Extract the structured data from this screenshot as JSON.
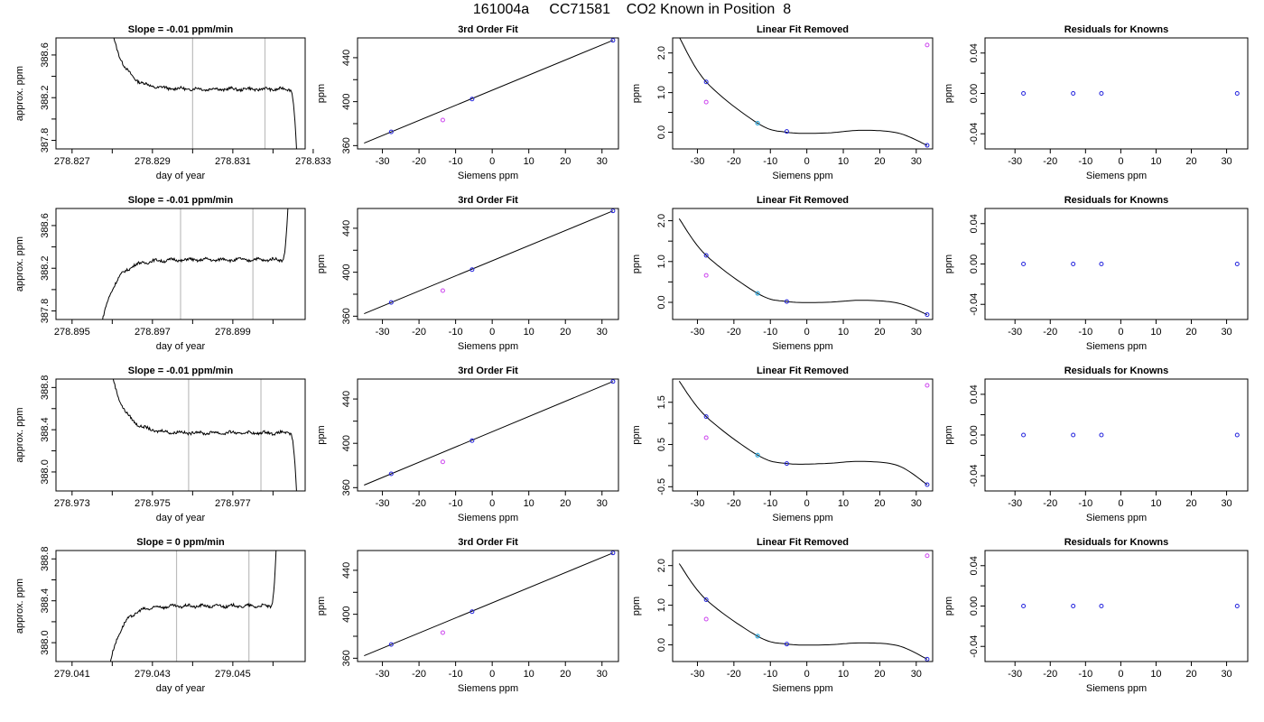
{
  "title": "161004a     CC71581    CO2 Known in Position  8",
  "colors": {
    "trace": "#000000",
    "marker_lines": "#bdbdbd",
    "known_points": "#2222dd",
    "reference_points": "#cc44ee",
    "cyan_point": "#33aadd"
  },
  "chart_data": [
    {
      "type": "line",
      "panel": "timeseries",
      "row": 1,
      "title": "Slope =  -0.01  ppm/min",
      "xlabel": "day of year",
      "ylabel": "approx. ppm",
      "xlim": [
        278.8266,
        278.8328
      ],
      "ylim": [
        387.72,
        388.76
      ],
      "xticks": [
        278.827,
        278.828,
        278.829,
        278.83,
        278.831,
        278.832,
        278.833
      ],
      "xtick_labels": [
        "278.827",
        "",
        "278.829",
        "",
        "278.831",
        "",
        "278.833"
      ],
      "yticks": [
        387.8,
        388.0,
        388.2,
        388.4,
        388.6
      ],
      "ytick_labels": [
        "387.8",
        "",
        "388.2",
        "",
        "388.6"
      ],
      "markers": [
        278.83,
        278.8318
      ],
      "trace": {
        "start": 278.8279,
        "end": 278.8326,
        "shape": "decay",
        "level": 388.28,
        "spike": 389.0,
        "tail": 387.6
      }
    },
    {
      "type": "line",
      "panel": "timeseries",
      "row": 2,
      "title": "Slope =  -0.01  ppm/min",
      "xlabel": "day of year",
      "ylabel": "approx. ppm",
      "xlim": [
        278.8946,
        278.9008
      ],
      "ylim": [
        387.72,
        388.76
      ],
      "xticks": [
        278.895,
        278.896,
        278.897,
        278.898,
        278.899,
        278.9
      ],
      "xtick_labels": [
        "278.895",
        "",
        "278.897",
        "",
        "278.899",
        ""
      ],
      "yticks": [
        387.8,
        388.0,
        388.2,
        388.4,
        388.6
      ],
      "ytick_labels": [
        "387.8",
        "",
        "388.2",
        "",
        "388.6"
      ],
      "markers": [
        278.8977,
        278.8995
      ],
      "trace": {
        "start": 278.8957,
        "end": 278.9004,
        "shape": "rise",
        "level": 388.28,
        "spike": 389.0,
        "tail": 387.6
      }
    },
    {
      "type": "line",
      "panel": "timeseries",
      "row": 3,
      "title": "Slope =  -0.01  ppm/min",
      "xlabel": "day of year",
      "ylabel": "approx. ppm",
      "xlim": [
        278.9726,
        278.9788
      ],
      "ylim": [
        387.82,
        388.88
      ],
      "xticks": [
        278.973,
        278.974,
        278.975,
        278.976,
        278.977,
        278.978
      ],
      "xtick_labels": [
        "278.973",
        "",
        "278.975",
        "",
        "278.977",
        ""
      ],
      "yticks": [
        388.0,
        388.2,
        388.4,
        388.6,
        388.8
      ],
      "ytick_labels": [
        "388.0",
        "",
        "388.4",
        "",
        "388.8"
      ],
      "markers": [
        278.9759,
        278.9777
      ],
      "trace": {
        "start": 278.9739,
        "end": 278.9786,
        "shape": "decay",
        "level": 388.37,
        "spike": 389.1,
        "tail": 387.7
      }
    },
    {
      "type": "line",
      "panel": "timeseries",
      "row": 4,
      "title": "Slope =  0  ppm/min",
      "xlabel": "day of year",
      "ylabel": "approx. ppm",
      "xlim": [
        279.0406,
        279.0468
      ],
      "ylim": [
        387.82,
        388.88
      ],
      "xticks": [
        279.041,
        279.042,
        279.043,
        279.044,
        279.045,
        279.046
      ],
      "xtick_labels": [
        "279.041",
        "",
        "279.043",
        "",
        "279.045",
        ""
      ],
      "yticks": [
        388.0,
        388.2,
        388.4,
        388.6,
        388.8
      ],
      "ytick_labels": [
        "388.0",
        "",
        "388.4",
        "",
        "388.8"
      ],
      "markers": [
        279.0436,
        279.0454
      ],
      "trace": {
        "start": 279.0419,
        "end": 279.0461,
        "shape": "rise",
        "level": 388.35,
        "spike": 389.1,
        "tail": 387.7
      }
    },
    {
      "type": "scatter",
      "panel": "fit",
      "row": 1,
      "title": "3rd Order Fit",
      "xlabel": "Siemens ppm",
      "ylabel": "ppm",
      "xlim": [
        -36.8,
        34.5
      ],
      "ylim": [
        357,
        458
      ],
      "xticks": [
        -30,
        -20,
        -10,
        0,
        10,
        20,
        30
      ],
      "xtick_labels": [
        "-30",
        "-20",
        "-10",
        "0",
        "10",
        "20",
        "30"
      ],
      "yticks": [
        360,
        380,
        400,
        420,
        440
      ],
      "ytick_labels": [
        "360",
        "",
        "400",
        "",
        "440"
      ],
      "line": [
        [
          -35,
          362.3
        ],
        [
          33,
          455.8
        ]
      ],
      "points_known": [
        [
          -27.6,
          372.5
        ],
        [
          -5.5,
          402.4
        ],
        [
          33,
          455.8
        ]
      ],
      "points_ref": [
        [
          -13.5,
          383.3
        ]
      ]
    },
    {
      "type": "scatter",
      "panel": "fit",
      "row": 2,
      "title": "3rd Order Fit",
      "xlabel": "Siemens ppm",
      "ylabel": "ppm",
      "xlim": [
        -36.8,
        34.5
      ],
      "ylim": [
        357,
        458
      ],
      "xticks": [
        -30,
        -20,
        -10,
        0,
        10,
        20,
        30
      ],
      "xtick_labels": [
        "-30",
        "-20",
        "-10",
        "0",
        "10",
        "20",
        "30"
      ],
      "yticks": [
        360,
        380,
        400,
        420,
        440
      ],
      "ytick_labels": [
        "360",
        "",
        "400",
        "",
        "440"
      ],
      "line": [
        [
          -35,
          362.3
        ],
        [
          33,
          455.8
        ]
      ],
      "points_known": [
        [
          -27.6,
          372.5
        ],
        [
          -5.5,
          402.4
        ],
        [
          33,
          455.8
        ]
      ],
      "points_ref": [
        [
          -13.5,
          383.3
        ]
      ]
    },
    {
      "type": "scatter",
      "panel": "fit",
      "row": 3,
      "title": "3rd Order Fit",
      "xlabel": "Siemens ppm",
      "ylabel": "ppm",
      "xlim": [
        -36.8,
        34.5
      ],
      "ylim": [
        357,
        458
      ],
      "xticks": [
        -30,
        -20,
        -10,
        0,
        10,
        20,
        30
      ],
      "xtick_labels": [
        "-30",
        "-20",
        "-10",
        "0",
        "10",
        "20",
        "30"
      ],
      "yticks": [
        360,
        380,
        400,
        420,
        440
      ],
      "ytick_labels": [
        "360",
        "",
        "400",
        "",
        "440"
      ],
      "line": [
        [
          -35,
          362.3
        ],
        [
          33,
          455.8
        ]
      ],
      "points_known": [
        [
          -27.6,
          372.5
        ],
        [
          -5.5,
          402.4
        ],
        [
          33,
          455.8
        ]
      ],
      "points_ref": [
        [
          -13.5,
          383.3
        ]
      ]
    },
    {
      "type": "scatter",
      "panel": "fit",
      "row": 4,
      "title": "3rd Order Fit",
      "xlabel": "Siemens ppm",
      "ylabel": "ppm",
      "xlim": [
        -36.8,
        34.5
      ],
      "ylim": [
        357,
        458
      ],
      "xticks": [
        -30,
        -20,
        -10,
        0,
        10,
        20,
        30
      ],
      "xtick_labels": [
        "-30",
        "-20",
        "-10",
        "0",
        "10",
        "20",
        "30"
      ],
      "yticks": [
        360,
        380,
        400,
        420,
        440
      ],
      "ytick_labels": [
        "360",
        "",
        "400",
        "",
        "440"
      ],
      "line": [
        [
          -35,
          362.3
        ],
        [
          33,
          455.8
        ]
      ],
      "points_known": [
        [
          -27.6,
          372.5
        ],
        [
          -5.5,
          402.4
        ],
        [
          33,
          455.8
        ]
      ],
      "points_ref": [
        [
          -13.5,
          383.3
        ]
      ]
    },
    {
      "type": "scatter",
      "panel": "residual_fit",
      "row": 1,
      "title": "Linear Fit Removed",
      "xlabel": "Siemens ppm",
      "ylabel": "ppm",
      "xlim": [
        -36.8,
        34.5
      ],
      "ylim": [
        -0.42,
        2.38
      ],
      "xticks": [
        -30,
        -20,
        -10,
        0,
        10,
        20,
        30
      ],
      "xtick_labels": [
        "-30",
        "-20",
        "-10",
        "0",
        "10",
        "20",
        "30"
      ],
      "yticks": [
        0.0,
        0.5,
        1.0,
        1.5,
        2.0
      ],
      "ytick_labels": [
        "0.0",
        "",
        "1.0",
        "",
        "2.0"
      ],
      "curve": [
        [
          -35,
          2.4
        ],
        [
          -27.6,
          1.27
        ],
        [
          -13.5,
          0.23
        ],
        [
          -5.5,
          0.0
        ],
        [
          5,
          -0.02
        ],
        [
          15,
          0.05
        ],
        [
          25,
          -0.02
        ],
        [
          33,
          -0.33
        ]
      ],
      "points_known": [
        [
          -27.6,
          1.27
        ],
        [
          -5.5,
          0.02
        ],
        [
          33,
          -0.33
        ]
      ],
      "points_ref": [
        [
          -27.6,
          0.76
        ],
        [
          33,
          2.2
        ]
      ],
      "points_cyan": [
        [
          -13.5,
          0.23
        ]
      ]
    },
    {
      "type": "scatter",
      "panel": "residual_fit",
      "row": 2,
      "title": "Linear Fit Removed",
      "xlabel": "Siemens ppm",
      "ylabel": "ppm",
      "xlim": [
        -36.8,
        34.5
      ],
      "ylim": [
        -0.42,
        2.3
      ],
      "xticks": [
        -30,
        -20,
        -10,
        0,
        10,
        20,
        30
      ],
      "xtick_labels": [
        "-30",
        "-20",
        "-10",
        "0",
        "10",
        "20",
        "30"
      ],
      "yticks": [
        0.0,
        0.5,
        1.0,
        1.5,
        2.0
      ],
      "ytick_labels": [
        "0.0",
        "",
        "1.0",
        "",
        "2.0"
      ],
      "curve": [
        [
          -35,
          2.05
        ],
        [
          -27.6,
          1.15
        ],
        [
          -13.5,
          0.22
        ],
        [
          -5.5,
          0.02
        ],
        [
          5,
          0.0
        ],
        [
          15,
          0.05
        ],
        [
          25,
          -0.02
        ],
        [
          33,
          -0.3
        ]
      ],
      "points_known": [
        [
          -27.6,
          1.15
        ],
        [
          -5.5,
          0.02
        ],
        [
          33,
          -0.3
        ]
      ],
      "points_ref": [
        [
          -27.6,
          0.66
        ]
      ],
      "points_cyan": [
        [
          -13.5,
          0.22
        ]
      ]
    },
    {
      "type": "scatter",
      "panel": "residual_fit",
      "row": 3,
      "title": "Linear Fit Removed",
      "xlabel": "Siemens ppm",
      "ylabel": "ppm",
      "xlim": [
        -36.8,
        34.5
      ],
      "ylim": [
        -0.6,
        2.05
      ],
      "xticks": [
        -30,
        -20,
        -10,
        0,
        10,
        20,
        30
      ],
      "xtick_labels": [
        "-30",
        "-20",
        "-10",
        "0",
        "10",
        "20",
        "30"
      ],
      "yticks": [
        -0.5,
        0.0,
        0.5,
        1.0,
        1.5
      ],
      "ytick_labels": [
        "-0.5",
        "",
        "0.5",
        "",
        "1.5"
      ],
      "curve": [
        [
          -35,
          2.0
        ],
        [
          -27.6,
          1.16
        ],
        [
          -13.5,
          0.25
        ],
        [
          -5.5,
          0.05
        ],
        [
          5,
          0.05
        ],
        [
          15,
          0.1
        ],
        [
          25,
          0.0
        ],
        [
          33,
          -0.45
        ]
      ],
      "points_known": [
        [
          -27.6,
          1.16
        ],
        [
          -5.5,
          0.05
        ],
        [
          33,
          -0.45
        ]
      ],
      "points_ref": [
        [
          -27.6,
          0.66
        ],
        [
          33,
          1.9
        ]
      ],
      "points_cyan": [
        [
          -13.5,
          0.25
        ]
      ]
    },
    {
      "type": "scatter",
      "panel": "residual_fit",
      "row": 4,
      "title": "Linear Fit Removed",
      "xlabel": "Siemens ppm",
      "ylabel": "ppm",
      "xlim": [
        -36.8,
        34.5
      ],
      "ylim": [
        -0.42,
        2.38
      ],
      "xticks": [
        -30,
        -20,
        -10,
        0,
        10,
        20,
        30
      ],
      "xtick_labels": [
        "-30",
        "-20",
        "-10",
        "0",
        "10",
        "20",
        "30"
      ],
      "yticks": [
        0.0,
        0.5,
        1.0,
        1.5,
        2.0
      ],
      "ytick_labels": [
        "0.0",
        "",
        "1.0",
        "",
        "2.0"
      ],
      "curve": [
        [
          -35,
          2.05
        ],
        [
          -27.6,
          1.14
        ],
        [
          -13.5,
          0.22
        ],
        [
          -5.5,
          0.02
        ],
        [
          5,
          0.0
        ],
        [
          15,
          0.05
        ],
        [
          25,
          -0.02
        ],
        [
          33,
          -0.36
        ]
      ],
      "points_known": [
        [
          -27.6,
          1.14
        ],
        [
          -5.5,
          0.02
        ],
        [
          33,
          -0.36
        ]
      ],
      "points_ref": [
        [
          -27.6,
          0.65
        ],
        [
          33,
          2.25
        ]
      ],
      "points_cyan": [
        [
          -13.5,
          0.22
        ]
      ]
    },
    {
      "type": "scatter",
      "panel": "residuals",
      "row": 1,
      "title": "Residuals for Knowns",
      "xlabel": "Siemens ppm",
      "ylabel": "ppm",
      "xlim": [
        -38.5,
        36
      ],
      "ylim": [
        -0.055,
        0.055
      ],
      "xticks": [
        -30,
        -20,
        -10,
        0,
        10,
        20,
        30
      ],
      "xtick_labels": [
        "-30",
        "-20",
        "-10",
        "0",
        "10",
        "20",
        "30"
      ],
      "yticks": [
        -0.04,
        -0.02,
        0.0,
        0.02,
        0.04
      ],
      "ytick_labels": [
        "-0.04",
        "",
        "0.00",
        "",
        "0.04"
      ],
      "points_known": [
        [
          -27.6,
          0
        ],
        [
          -13.5,
          0
        ],
        [
          -5.5,
          0
        ],
        [
          33,
          0
        ]
      ]
    },
    {
      "type": "scatter",
      "panel": "residuals",
      "row": 2,
      "title": "Residuals for Knowns",
      "xlabel": "Siemens ppm",
      "ylabel": "ppm",
      "xlim": [
        -38.5,
        36
      ],
      "ylim": [
        -0.055,
        0.055
      ],
      "xticks": [
        -30,
        -20,
        -10,
        0,
        10,
        20,
        30
      ],
      "xtick_labels": [
        "-30",
        "-20",
        "-10",
        "0",
        "10",
        "20",
        "30"
      ],
      "yticks": [
        -0.04,
        -0.02,
        0.0,
        0.02,
        0.04
      ],
      "ytick_labels": [
        "-0.04",
        "",
        "0.00",
        "",
        "0.04"
      ],
      "points_known": [
        [
          -27.6,
          0
        ],
        [
          -13.5,
          0
        ],
        [
          -5.5,
          0
        ],
        [
          33,
          0
        ]
      ]
    },
    {
      "type": "scatter",
      "panel": "residuals",
      "row": 3,
      "title": "Residuals for Knowns",
      "xlabel": "Siemens ppm",
      "ylabel": "ppm",
      "xlim": [
        -38.5,
        36
      ],
      "ylim": [
        -0.055,
        0.055
      ],
      "xticks": [
        -30,
        -20,
        -10,
        0,
        10,
        20,
        30
      ],
      "xtick_labels": [
        "-30",
        "-20",
        "-10",
        "0",
        "10",
        "20",
        "30"
      ],
      "yticks": [
        -0.04,
        -0.02,
        0.0,
        0.02,
        0.04
      ],
      "ytick_labels": [
        "-0.04",
        "",
        "0.00",
        "",
        "0.04"
      ],
      "points_known": [
        [
          -27.6,
          0
        ],
        [
          -13.5,
          0
        ],
        [
          -5.5,
          0
        ],
        [
          33,
          0
        ]
      ]
    },
    {
      "type": "scatter",
      "panel": "residuals",
      "row": 4,
      "title": "Residuals for Knowns",
      "xlabel": "Siemens ppm",
      "ylabel": "ppm",
      "xlim": [
        -38.5,
        36
      ],
      "ylim": [
        -0.055,
        0.055
      ],
      "xticks": [
        -30,
        -20,
        -10,
        0,
        10,
        20,
        30
      ],
      "xtick_labels": [
        "-30",
        "-20",
        "-10",
        "0",
        "10",
        "20",
        "30"
      ],
      "yticks": [
        -0.04,
        -0.02,
        0.0,
        0.02,
        0.04
      ],
      "ytick_labels": [
        "-0.04",
        "",
        "0.00",
        "",
        "0.04"
      ],
      "points_known": [
        [
          -27.6,
          0
        ],
        [
          -13.5,
          0
        ],
        [
          -5.5,
          0
        ],
        [
          33,
          0
        ]
      ]
    }
  ]
}
